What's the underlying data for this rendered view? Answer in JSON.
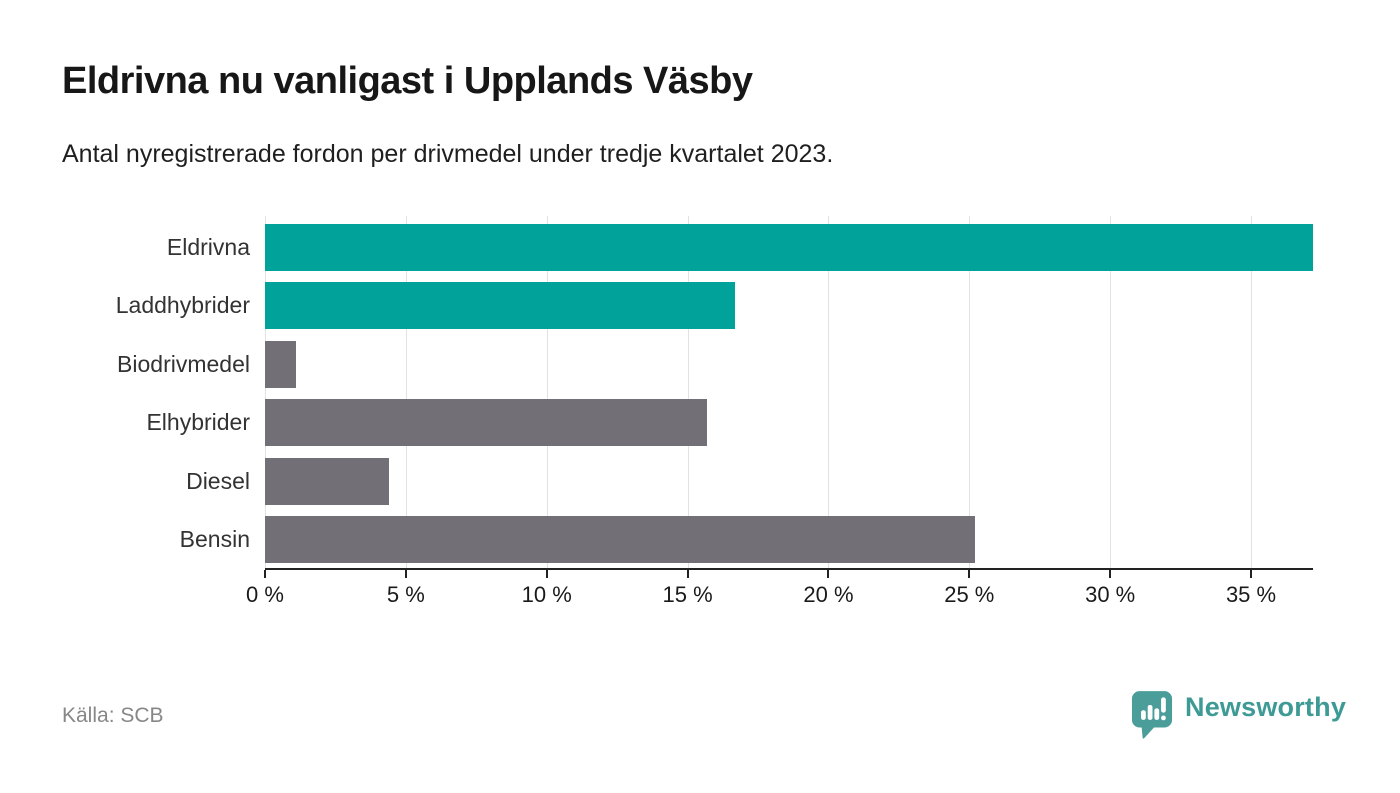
{
  "header": {
    "title": "Eldrivna nu vanligast i Upplands Väsby",
    "subtitle": "Antal nyregistrerade fordon per drivmedel under tredje kvartalet 2023."
  },
  "footer": {
    "source": "Källa: SCB",
    "brand": "Newsworthy"
  },
  "colors": {
    "teal": "#00a29a",
    "gray": "#727076",
    "grid": "#e2e2e4",
    "axis": "#222222",
    "category_label": "#333333",
    "tick_label": "#1a1a1a",
    "source_text": "#878787",
    "brand_teal": "#3e9a95",
    "logo_bubble": "#4a9d99"
  },
  "chart_data": {
    "type": "bar",
    "orientation": "horizontal",
    "title": "Eldrivna nu vanligast i Upplands Väsby",
    "subtitle": "Antal nyregistrerade fordon per drivmedel under tredje kvartalet 2023.",
    "categories": [
      "Eldrivna",
      "Laddhybrider",
      "Biodrivmedel",
      "Elhybrider",
      "Diesel",
      "Bensin"
    ],
    "values": [
      37.2,
      16.7,
      1.1,
      15.7,
      4.4,
      25.2
    ],
    "unit": "%",
    "bar_colors": [
      "#00a29a",
      "#00a29a",
      "#727076",
      "#727076",
      "#727076",
      "#727076"
    ],
    "xlabel": "",
    "ylabel": "",
    "xlim": [
      0,
      37.2
    ],
    "x_ticks": [
      0,
      5,
      10,
      15,
      20,
      25,
      30,
      35
    ],
    "x_tick_labels": [
      "0 %",
      "5 %",
      "10 %",
      "15 %",
      "20 %",
      "25 %",
      "30 %",
      "35 %"
    ],
    "grid": "vertical",
    "legend": "none"
  }
}
